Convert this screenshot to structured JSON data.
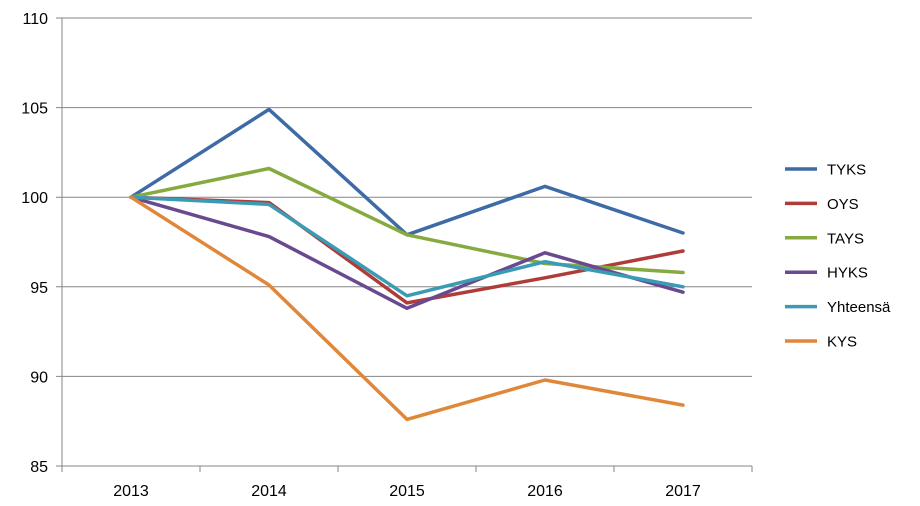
{
  "chart_data": {
    "type": "line",
    "title": "",
    "xlabel": "",
    "ylabel": "",
    "categories": [
      "2013",
      "2014",
      "2015",
      "2016",
      "2017"
    ],
    "ylim": [
      85,
      110
    ],
    "yticks": [
      85,
      90,
      95,
      100,
      105,
      110
    ],
    "grid": true,
    "legend_position": "right",
    "series": [
      {
        "name": "TYKS",
        "color": "#3e6aa6",
        "values": [
          100,
          104.9,
          97.9,
          100.6,
          98.0
        ]
      },
      {
        "name": "OYS",
        "color": "#b03c3a",
        "values": [
          100,
          99.7,
          94.1,
          95.5,
          97.0
        ]
      },
      {
        "name": "TAYS",
        "color": "#86aa3f",
        "values": [
          100,
          101.6,
          97.9,
          96.3,
          95.8
        ]
      },
      {
        "name": "HYKS",
        "color": "#6a4a8f",
        "values": [
          100,
          97.8,
          93.8,
          96.9,
          94.7
        ]
      },
      {
        "name": "Yhteensä",
        "color": "#3a9bb5",
        "values": [
          100,
          99.6,
          94.5,
          96.4,
          95.0
        ]
      },
      {
        "name": "KYS",
        "color": "#e0873a",
        "values": [
          100,
          95.1,
          87.6,
          89.8,
          88.4
        ]
      }
    ]
  }
}
